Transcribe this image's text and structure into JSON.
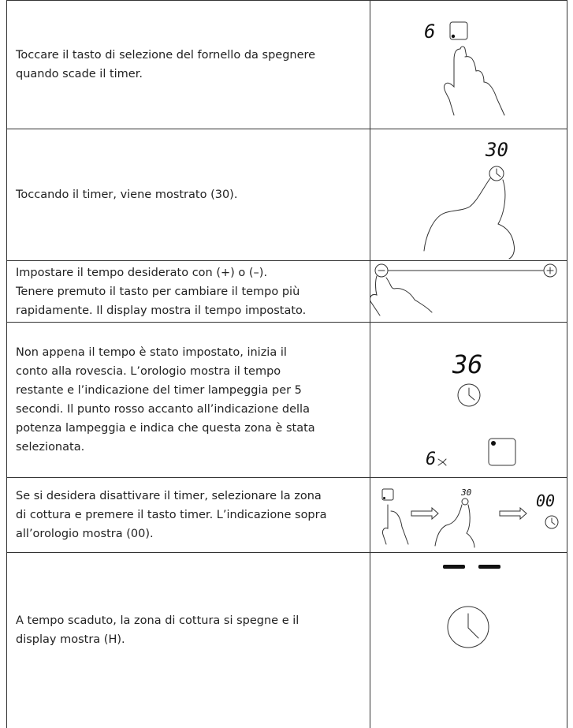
{
  "table": {
    "rows": [
      {
        "lines": [
          "Toccare il tasto di selezione del fornello da spegnere",
          "quando scade il timer."
        ],
        "display": [
          "6"
        ]
      },
      {
        "lines": [
          "Toccando il timer, viene mostrato (30)."
        ],
        "display": [
          "30"
        ]
      },
      {
        "lines": [
          "Impostare il tempo desiderato con (+) o (–).",
          "Tenere premuto il tasto per cambiare il tempo più",
          "rapidamente. Il display mostra il tempo impostato."
        ],
        "display": []
      },
      {
        "lines": [
          "Non appena il tempo è stato impostato, inizia il",
          "conto alla rovescia. L’orologio mostra il tempo",
          "restante e l’indicazione del timer lampeggia per 5",
          "secondi. Il punto rosso accanto all’indicazione della",
          "potenza lampeggia e indica che questa zona è stata",
          "selezionata."
        ],
        "display": [
          "36",
          "6"
        ]
      },
      {
        "lines": [
          "Se si desidera disattivare il timer, selezionare la zona",
          "di cottura e premere il tasto timer. L’indicazione sopra",
          "all’orologio mostra (00)."
        ],
        "display": [
          "30",
          "00"
        ]
      },
      {
        "lines": [
          "A tempo scaduto, la zona di cottura si spegne e il",
          "display mostra (H)."
        ],
        "display": []
      }
    ]
  }
}
